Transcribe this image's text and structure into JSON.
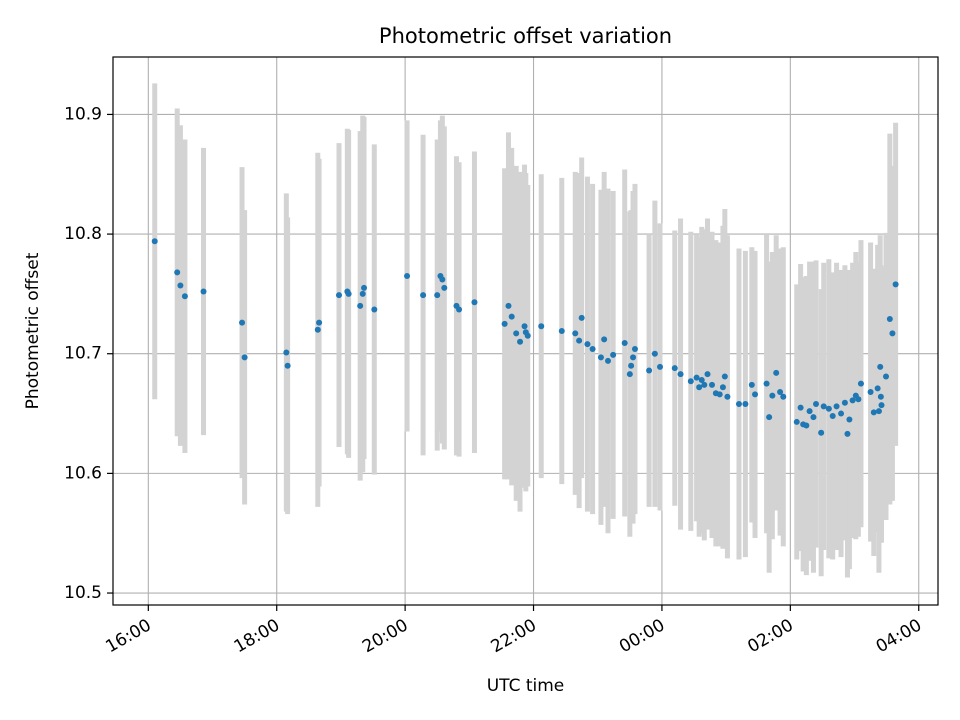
{
  "chart_data": {
    "type": "scatter",
    "title": "Photometric offset variation",
    "xlabel": "UTC time",
    "ylabel": "Photometric offset",
    "x_unit": "hours, UTC on a continuous clock (24.00 = 00:00 next day)",
    "xlim": [
      15.45,
      28.3
    ],
    "ylim": [
      10.49,
      10.948
    ],
    "grid": true,
    "x_ticks": [
      {
        "value": 16,
        "label": "16:00"
      },
      {
        "value": 18,
        "label": "18:00"
      },
      {
        "value": 20,
        "label": "20:00"
      },
      {
        "value": 22,
        "label": "22:00"
      },
      {
        "value": 24,
        "label": "00:00"
      },
      {
        "value": 26,
        "label": "02:00"
      },
      {
        "value": 28,
        "label": "04:00"
      }
    ],
    "y_ticks": [
      {
        "value": 10.5,
        "label": "10.5"
      },
      {
        "value": 10.6,
        "label": "10.6"
      },
      {
        "value": 10.7,
        "label": "10.7"
      },
      {
        "value": 10.8,
        "label": "10.8"
      },
      {
        "value": 10.9,
        "label": "10.9"
      }
    ],
    "colors": {
      "marker": "#1f77b4",
      "errorbar": "#d3d3d3",
      "grid": "#b0b0b0",
      "axes": "#000000"
    },
    "points": [
      [
        16.1,
        10.794,
        0.132
      ],
      [
        16.45,
        10.768,
        0.137
      ],
      [
        16.5,
        10.757,
        0.134
      ],
      [
        16.57,
        10.748,
        0.131
      ],
      [
        16.86,
        10.752,
        0.12
      ],
      [
        17.46,
        10.726,
        0.13
      ],
      [
        17.5,
        10.697,
        0.123
      ],
      [
        18.15,
        10.701,
        0.133
      ],
      [
        18.17,
        10.69,
        0.124
      ],
      [
        18.64,
        10.72,
        0.148
      ],
      [
        18.66,
        10.726,
        0.137
      ],
      [
        18.97,
        10.749,
        0.127
      ],
      [
        19.1,
        10.752,
        0.136
      ],
      [
        19.12,
        10.75,
        0.137
      ],
      [
        19.3,
        10.74,
        0.146
      ],
      [
        19.34,
        10.75,
        0.149
      ],
      [
        19.36,
        10.755,
        0.143
      ],
      [
        19.52,
        10.737,
        0.138
      ],
      [
        20.03,
        10.765,
        0.13
      ],
      [
        20.28,
        10.749,
        0.134
      ],
      [
        20.5,
        10.749,
        0.13
      ],
      [
        20.55,
        10.765,
        0.13
      ],
      [
        20.58,
        10.762,
        0.137
      ],
      [
        20.61,
        10.755,
        0.135
      ],
      [
        20.8,
        10.74,
        0.125
      ],
      [
        20.84,
        10.737,
        0.123
      ],
      [
        21.08,
        10.743,
        0.126
      ],
      [
        21.55,
        10.725,
        0.13
      ],
      [
        21.61,
        10.74,
        0.145
      ],
      [
        21.66,
        10.731,
        0.141
      ],
      [
        21.73,
        10.717,
        0.14
      ],
      [
        21.79,
        10.71,
        0.142
      ],
      [
        21.86,
        10.723,
        0.135
      ],
      [
        21.88,
        10.718,
        0.133
      ],
      [
        21.91,
        10.715,
        0.126
      ],
      [
        22.12,
        10.723,
        0.127
      ],
      [
        22.44,
        10.719,
        0.128
      ],
      [
        22.65,
        10.717,
        0.135
      ],
      [
        22.71,
        10.711,
        0.14
      ],
      [
        22.75,
        10.73,
        0.134
      ],
      [
        22.84,
        10.708,
        0.14
      ],
      [
        22.92,
        10.704,
        0.138
      ],
      [
        23.05,
        10.697,
        0.14
      ],
      [
        23.1,
        10.712,
        0.14
      ],
      [
        23.16,
        10.694,
        0.144
      ],
      [
        23.24,
        10.699,
        0.137
      ],
      [
        23.42,
        10.709,
        0.145
      ],
      [
        23.5,
        10.683,
        0.136
      ],
      [
        23.52,
        10.69,
        0.13
      ],
      [
        23.55,
        10.697,
        0.139
      ],
      [
        23.58,
        10.704,
        0.138
      ],
      [
        23.8,
        10.686,
        0.114
      ],
      [
        23.89,
        10.7,
        0.128
      ],
      [
        23.97,
        10.689,
        0.12
      ],
      [
        24.2,
        10.688,
        0.115
      ],
      [
        24.29,
        10.683,
        0.13
      ],
      [
        24.45,
        10.677,
        0.125
      ],
      [
        24.54,
        10.68,
        0.12
      ],
      [
        24.58,
        10.672,
        0.125
      ],
      [
        24.62,
        10.678,
        0.128
      ],
      [
        24.66,
        10.674,
        0.13
      ],
      [
        24.71,
        10.683,
        0.13
      ],
      [
        24.78,
        10.674,
        0.128
      ],
      [
        24.84,
        10.667,
        0.128
      ],
      [
        24.9,
        10.666,
        0.127
      ],
      [
        24.95,
        10.672,
        0.135
      ],
      [
        24.98,
        10.681,
        0.14
      ],
      [
        25.02,
        10.664,
        0.135
      ],
      [
        25.2,
        10.658,
        0.13
      ],
      [
        25.3,
        10.658,
        0.128
      ],
      [
        25.4,
        10.674,
        0.115
      ],
      [
        25.45,
        10.666,
        0.12
      ],
      [
        25.63,
        10.675,
        0.125
      ],
      [
        25.67,
        10.647,
        0.13
      ],
      [
        25.72,
        10.665,
        0.12
      ],
      [
        25.78,
        10.684,
        0.115
      ],
      [
        25.84,
        10.668,
        0.12
      ],
      [
        25.89,
        10.664,
        0.125
      ],
      [
        26.1,
        10.643,
        0.115
      ],
      [
        26.16,
        10.655,
        0.12
      ],
      [
        26.2,
        10.641,
        0.123
      ],
      [
        26.25,
        10.64,
        0.125
      ],
      [
        26.3,
        10.652,
        0.125
      ],
      [
        26.36,
        10.647,
        0.13
      ],
      [
        26.4,
        10.658,
        0.12
      ],
      [
        26.48,
        10.634,
        0.12
      ],
      [
        26.52,
        10.656,
        0.12
      ],
      [
        26.6,
        10.654,
        0.125
      ],
      [
        26.66,
        10.648,
        0.12
      ],
      [
        26.72,
        10.656,
        0.12
      ],
      [
        26.79,
        10.65,
        0.12
      ],
      [
        26.85,
        10.659,
        0.115
      ],
      [
        26.89,
        10.633,
        0.12
      ],
      [
        26.92,
        10.645,
        0.125
      ],
      [
        26.97,
        10.661,
        0.115
      ],
      [
        27.02,
        10.665,
        0.12
      ],
      [
        27.06,
        10.662,
        0.115
      ],
      [
        27.1,
        10.675,
        0.12
      ],
      [
        27.25,
        10.668,
        0.125
      ],
      [
        27.3,
        10.651,
        0.12
      ],
      [
        27.36,
        10.671,
        0.12
      ],
      [
        27.38,
        10.652,
        0.135
      ],
      [
        27.4,
        10.689,
        0.11
      ],
      [
        27.41,
        10.664,
        0.11
      ],
      [
        27.42,
        10.657,
        0.115
      ],
      [
        27.49,
        10.681,
        0.12
      ],
      [
        27.55,
        10.729,
        0.155
      ],
      [
        27.59,
        10.717,
        0.14
      ],
      [
        27.64,
        10.758,
        0.135
      ]
    ]
  }
}
